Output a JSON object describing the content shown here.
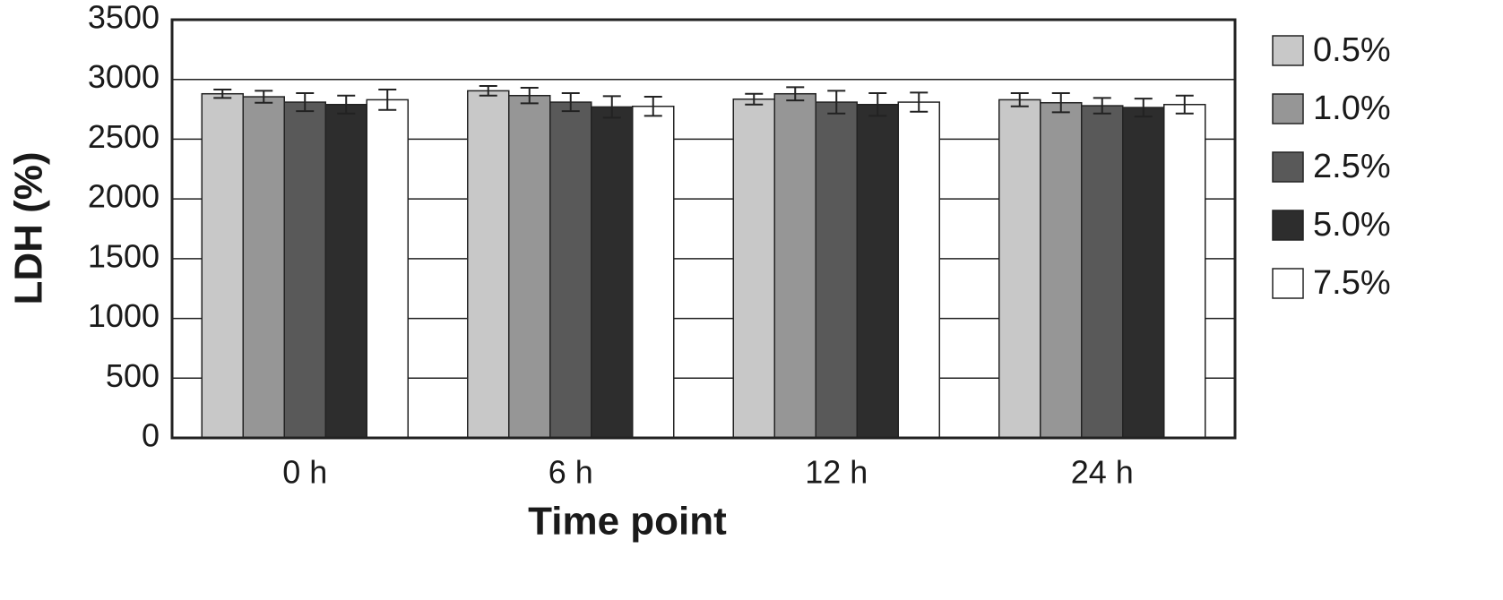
{
  "chart_data": {
    "type": "bar",
    "x_label": "Time point",
    "y_label": "LDH (%)",
    "categories": [
      "0 h",
      "6 h",
      "12 h",
      "24 h"
    ],
    "series": [
      {
        "name": "0.5%",
        "color": "#c8c8c8",
        "values": [
          2880,
          2905,
          2835,
          2830
        ],
        "errors": [
          35,
          40,
          45,
          55
        ]
      },
      {
        "name": "1.0%",
        "color": "#969696",
        "values": [
          2855,
          2865,
          2880,
          2805
        ],
        "errors": [
          50,
          65,
          55,
          80
        ]
      },
      {
        "name": "2.5%",
        "color": "#595959",
        "values": [
          2810,
          2810,
          2810,
          2780
        ],
        "errors": [
          75,
          75,
          95,
          65
        ]
      },
      {
        "name": "5.0%",
        "color": "#2d2d2d",
        "values": [
          2790,
          2770,
          2790,
          2765
        ],
        "errors": [
          75,
          90,
          95,
          75
        ]
      },
      {
        "name": "7.5%",
        "color": "#ffffff",
        "values": [
          2830,
          2775,
          2810,
          2790
        ],
        "errors": [
          85,
          80,
          80,
          75
        ]
      }
    ],
    "ylim": [
      0,
      3500
    ],
    "yticks": [
      0,
      500,
      1000,
      1500,
      2000,
      2500,
      3000,
      3500
    ],
    "grid": true,
    "legend": "right"
  }
}
